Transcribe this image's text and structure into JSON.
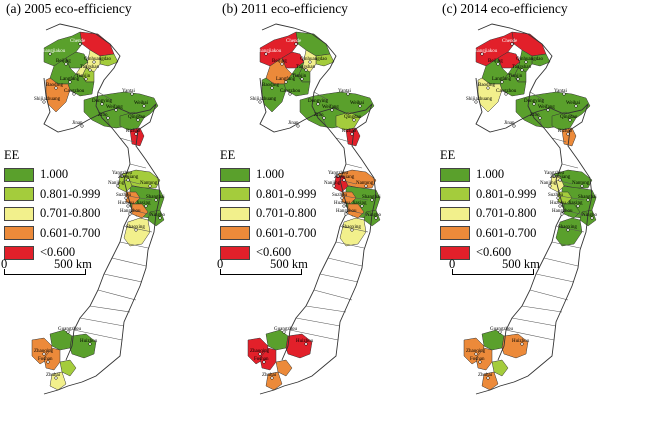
{
  "panels": [
    {
      "title": "(a) 2005 eco-efficiency",
      "regions": {
        "chengde": "red",
        "zhangjiakou": "green",
        "beijing": "green",
        "qinhuangdao": "lightgreen",
        "tangshan": "yellow",
        "tianjin": "lightgreen",
        "langfang": "yellow",
        "baoding": "green",
        "cangzhou": "green",
        "shijiazhuang": "orange",
        "shandong": "green",
        "qingdao": "green",
        "rizhao": "red",
        "yangtze_n": "lightgreen",
        "yangtze_s": "green",
        "nanjing": "lightgreen",
        "suzhou": "orange",
        "hangzhou": "orange",
        "shaoxing": "yellow",
        "ningbo": "green",
        "zhaoqing": "orange",
        "foshan": "orange",
        "guangzhou": "green",
        "huizhou": "green",
        "zhuhai": "yellow",
        "zhongshan": "lightgreen"
      }
    },
    {
      "title": "(b) 2011 eco-efficiency",
      "regions": {
        "chengde": "green",
        "zhangjiakou": "red",
        "beijing": "red",
        "qinhuangdao": "lightgreen",
        "tangshan": "yellow",
        "tianjin": "green",
        "langfang": "green",
        "baoding": "orange",
        "cangzhou": "green",
        "shijiazhuang": "green",
        "shandong": "green",
        "qingdao": "lightgreen",
        "rizhao": "red",
        "yangtze_n": "orange",
        "yangtze_s": "green",
        "nanjing": "red",
        "suzhou": "orange",
        "hangzhou": "orange",
        "shaoxing": "yellow",
        "ningbo": "green",
        "zhaoqing": "red",
        "foshan": "red",
        "guangzhou": "green",
        "huizhou": "red",
        "zhuhai": "orange",
        "zhongshan": "orange"
      }
    },
    {
      "title": "(c) 2014 eco-efficiency",
      "regions": {
        "chengde": "red",
        "zhangjiakou": "red",
        "beijing": "red",
        "qinhuangdao": "green",
        "tangshan": "green",
        "tianjin": "green",
        "langfang": "green",
        "baoding": "green",
        "cangzhou": "green",
        "shijiazhuang": "yellow",
        "shandong": "green",
        "qingdao": "green",
        "rizhao": "orange",
        "yangtze_n": "green",
        "yangtze_s": "green",
        "nanjing": "yellow",
        "suzhou": "lightgreen",
        "hangzhou": "green",
        "shaoxing": "green",
        "ningbo": "green",
        "zhaoqing": "orange",
        "foshan": "orange",
        "guangzhou": "green",
        "huizhou": "orange",
        "zhuhai": "orange",
        "zhongshan": "lightgreen"
      }
    }
  ],
  "legend": {
    "title": "EE",
    "items": [
      {
        "key": "green",
        "label": "1.000",
        "color": "#5aa02c"
      },
      {
        "key": "lightgreen",
        "label": "0.801-0.999",
        "color": "#a4cc3c"
      },
      {
        "key": "yellow",
        "label": "0.701-0.800",
        "color": "#f2f08c"
      },
      {
        "key": "orange",
        "label": "0.601-0.700",
        "color": "#ec8a3a"
      },
      {
        "key": "red",
        "label": "<0.600",
        "color": "#e2202a"
      }
    ]
  },
  "scale": {
    "zero": "0",
    "max": "500 km"
  },
  "cities": [
    {
      "key": "chengde",
      "label": "Chende"
    },
    {
      "key": "zhangjiakou",
      "label": "Zhangjiakou"
    },
    {
      "key": "beijing",
      "label": "Beijing"
    },
    {
      "key": "qinhuangdao",
      "label": "Qinhuangdao"
    },
    {
      "key": "tangshan",
      "label": "Tangshan"
    },
    {
      "key": "tianjin",
      "label": "Tianjin"
    },
    {
      "key": "langfang",
      "label": "Langfang"
    },
    {
      "key": "baoding",
      "label": "Baoding"
    },
    {
      "key": "cangzhou",
      "label": "Cangzhou"
    },
    {
      "key": "shijiazhuang",
      "label": "Shijiazhuang"
    },
    {
      "key": "yantai",
      "label": "Yantai"
    },
    {
      "key": "weihai",
      "label": "Weihai"
    },
    {
      "key": "dongying",
      "label": "Dongying"
    },
    {
      "key": "weifang",
      "label": "Weifang"
    },
    {
      "key": "zibo",
      "label": "Zibo"
    },
    {
      "key": "jinan",
      "label": "Jinan"
    },
    {
      "key": "qingdao",
      "label": "Qingdao"
    },
    {
      "key": "rizhao",
      "label": "Rizhao"
    },
    {
      "key": "yangzhou",
      "label": "Yangzhou"
    },
    {
      "key": "nanjing",
      "label": "Nanjing"
    },
    {
      "key": "zhenjiang",
      "label": "Zhenjiang"
    },
    {
      "key": "nantong",
      "label": "Nantong"
    },
    {
      "key": "suzhou",
      "label": "Suzhou"
    },
    {
      "key": "shanghai",
      "label": "Shanghai"
    },
    {
      "key": "jiaxing",
      "label": "Jiaxing"
    },
    {
      "key": "huzhou",
      "label": "Huzhou"
    },
    {
      "key": "hangzhou",
      "label": "Hangzhou"
    },
    {
      "key": "ningbo",
      "label": "Ningbo"
    },
    {
      "key": "shaoxing",
      "label": "Shaoxing"
    },
    {
      "key": "guangzhou",
      "label": "Guangzhou"
    },
    {
      "key": "zhaoqing",
      "label": "Zhaoqing"
    },
    {
      "key": "foshan",
      "label": "Foshan"
    },
    {
      "key": "huizhou",
      "label": "Huizhou"
    },
    {
      "key": "zhuhai",
      "label": "Zhuhai"
    }
  ]
}
